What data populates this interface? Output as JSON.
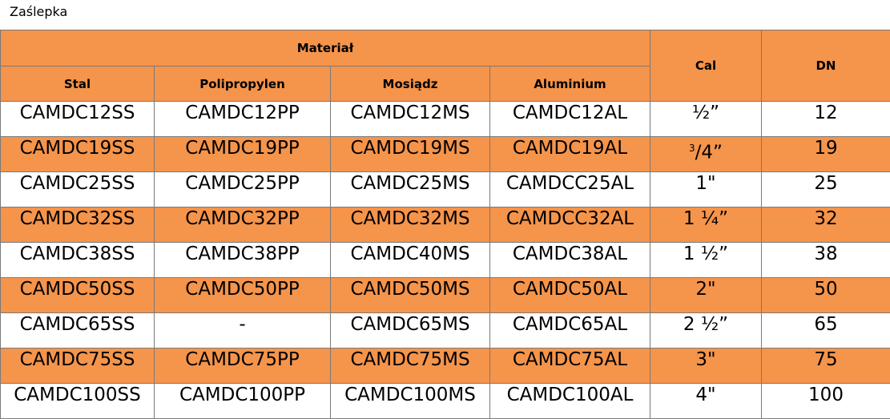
{
  "caption": "Zaślepka",
  "table": {
    "group_header": "Materiał",
    "headers": {
      "stal": "Stal",
      "polipropylen": "Polipropylen",
      "mosiadz": "Mosiądz",
      "aluminium": "Aluminium",
      "cal": "Cal",
      "dn": "DN"
    },
    "rows": [
      {
        "stal": "CAMDC12SS",
        "polipropylen": "CAMDC12PP",
        "mosiadz": "CAMDC12MS",
        "aluminium": "CAMDC12AL",
        "cal": "½”",
        "dn": "12"
      },
      {
        "stal": "CAMDC19SS",
        "polipropylen": "CAMDC19PP",
        "mosiadz": "CAMDC19MS",
        "aluminium": "CAMDC19AL",
        "cal": "3/4”",
        "dn": "19"
      },
      {
        "stal": "CAMDC25SS",
        "polipropylen": "CAMDC25PP",
        "mosiadz": "CAMDC25MS",
        "aluminium": "CAMDCC25AL",
        "cal": "1\"",
        "dn": "25"
      },
      {
        "stal": "CAMDC32SS",
        "polipropylen": "CAMDC32PP",
        "mosiadz": "CAMDC32MS",
        "aluminium": "CAMDCC32AL",
        "cal": "1 ¼”",
        "dn": "32"
      },
      {
        "stal": "CAMDC38SS",
        "polipropylen": "CAMDC38PP",
        "mosiadz": "CAMDC40MS",
        "aluminium": "CAMDC38AL",
        "cal": "1 ½”",
        "dn": "38"
      },
      {
        "stal": "CAMDC50SS",
        "polipropylen": "CAMDC50PP",
        "mosiadz": "CAMDC50MS",
        "aluminium": "CAMDC50AL",
        "cal": "2\"",
        "dn": "50"
      },
      {
        "stal": "CAMDC65SS",
        "polipropylen": "-",
        "mosiadz": "CAMDC65MS",
        "aluminium": "CAMDC65AL",
        "cal": "2 ½”",
        "dn": "65"
      },
      {
        "stal": "CAMDC75SS",
        "polipropylen": "CAMDC75PP",
        "mosiadz": "CAMDC75MS",
        "aluminium": "CAMDC75AL",
        "cal": "3\"",
        "dn": "75"
      },
      {
        "stal": "CAMDC100SS",
        "polipropylen": "CAMDC100PP",
        "mosiadz": "CAMDC100MS",
        "aluminium": "CAMDC100AL",
        "cal": "4\"",
        "dn": "100"
      }
    ]
  },
  "colors": {
    "accent": "#f5944b",
    "border": "#7a7a7a",
    "background": "#ffffff"
  }
}
